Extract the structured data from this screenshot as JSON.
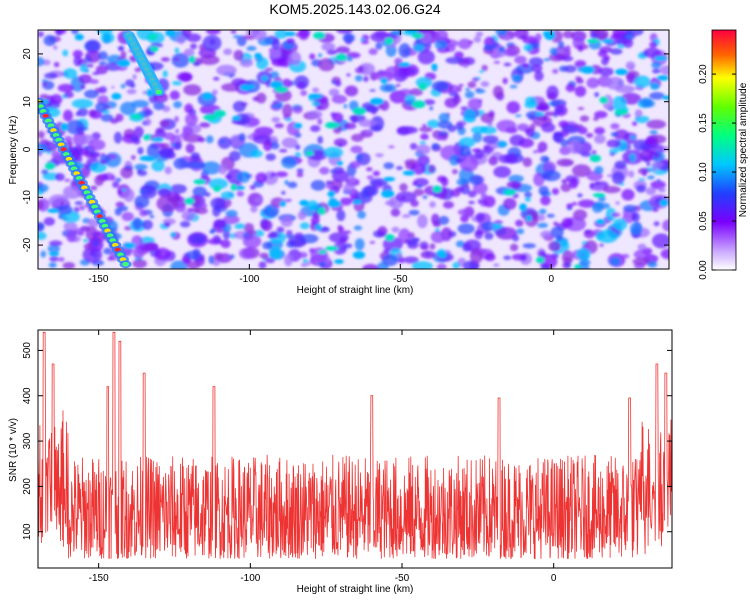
{
  "title": "KOM5.2025.143.02.06.G24",
  "chart_data": [
    {
      "type": "heatmap",
      "xlabel": "Height of straight line (km)",
      "ylabel": "Frequency (Hz)",
      "xlim": [
        -170,
        39
      ],
      "ylim": [
        -25,
        25
      ],
      "x_ticks": [
        "-150",
        "-100",
        "-50",
        "0"
      ],
      "y_ticks": [
        "20",
        "10",
        "0",
        "-10",
        "-20"
      ],
      "colorbar": {
        "label": "Normalized spectral amplitude",
        "range": [
          0,
          0.245
        ],
        "ticks": [
          "0.00",
          "0.05",
          "0.10",
          "0.15",
          "0.20"
        ]
      },
      "features": [
        {
          "description_of": "bright diagonal ridge",
          "x_start": -170,
          "y_start": 10,
          "x_end": -141,
          "y_end": -24
        },
        {
          "description_of": "secondary diagonal ridge",
          "x_start": -140,
          "y_start": 24,
          "x_end": -130,
          "y_end": 12
        }
      ]
    },
    {
      "type": "line",
      "xlabel": "Height of straight line (km)",
      "ylabel": "SNR (10 * v/v)",
      "xlim": [
        -170,
        39
      ],
      "ylim": [
        20,
        545
      ],
      "x_ticks": [
        "-150",
        "-100",
        "-50",
        "0"
      ],
      "y_ticks": [
        "100",
        "200",
        "300",
        "400",
        "500"
      ],
      "series": [
        {
          "color": "#ee3333",
          "baseline_mean": 140,
          "peaks": [
            {
              "x": -168,
              "y": 540
            },
            {
              "x": -165,
              "y": 470
            },
            {
              "x": -145,
              "y": 540
            },
            {
              "x": -143,
              "y": 520
            },
            {
              "x": -147,
              "y": 420
            },
            {
              "x": -135,
              "y": 450
            },
            {
              "x": -112,
              "y": 420
            },
            {
              "x": -60,
              "y": 400
            },
            {
              "x": -18,
              "y": 395
            },
            {
              "x": 25,
              "y": 395
            },
            {
              "x": 34,
              "y": 470
            },
            {
              "x": 37,
              "y": 450
            }
          ]
        }
      ]
    }
  ]
}
